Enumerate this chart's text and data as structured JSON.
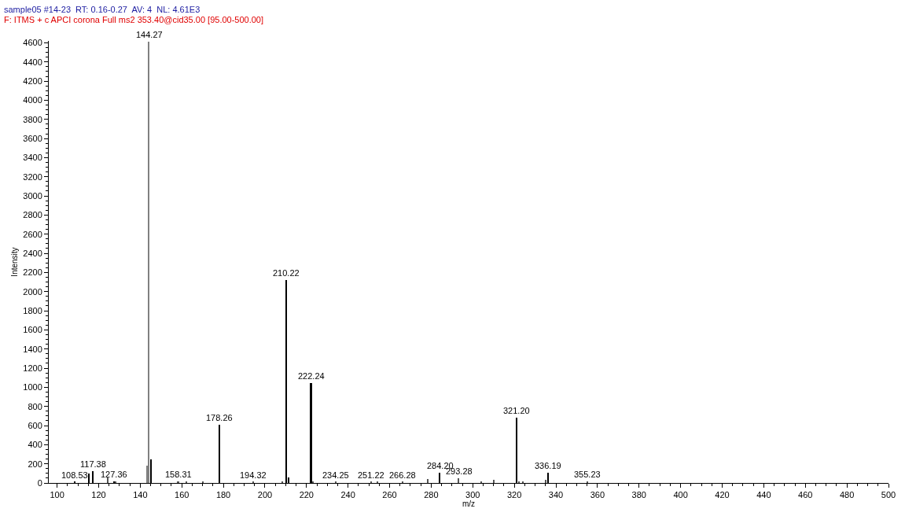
{
  "chart_data": {
    "type": "bar",
    "title": "sample05 #14-23  RT: 0.16-0.27  AV: 4  NL: 4.61E3",
    "subtitle": "F: ITMS + c APCI corona Full ms2 353.40@cid35.00 [95.00-500.00]",
    "xlabel": "m/z",
    "ylabel": "Intensity",
    "x": [
      108.53,
      115.4,
      117.38,
      124.3,
      127.36,
      128.3,
      143.4,
      144.27,
      145.3,
      158.31,
      162.3,
      170.3,
      178.26,
      194.32,
      208.3,
      210.22,
      211.3,
      222.24,
      223.3,
      234.25,
      251.22,
      254.3,
      266.28,
      278.3,
      284.2,
      293.28,
      304.3,
      310.3,
      321.2,
      322.3,
      324.3,
      335.3,
      336.19,
      355.23
    ],
    "values": [
      10,
      100,
      120,
      60,
      20,
      20,
      180,
      4610,
      250,
      20,
      10,
      10,
      610,
      10,
      20,
      2120,
      60,
      1040,
      20,
      10,
      10,
      10,
      10,
      40,
      110,
      50,
      10,
      30,
      680,
      20,
      10,
      30,
      110,
      20
    ],
    "colors": [
      "#000000",
      "#000000",
      "#000000",
      "#555555",
      "#000000",
      "#555555",
      "#808080",
      "#808080",
      "#000000",
      "#555555",
      "#555555",
      "#555555",
      "#000000",
      "#555555",
      "#555555",
      "#000000",
      "#000000",
      "#000000",
      "#555555",
      "#555555",
      "#555555",
      "#555555",
      "#555555",
      "#555555",
      "#000000",
      "#555555",
      "#555555",
      "#555555",
      "#000000",
      "#555555",
      "#555555",
      "#555555",
      "#000000",
      "#555555"
    ],
    "annotations": [
      {
        "text": "108.53",
        "x": 108.53,
        "y": 10
      },
      {
        "text": "117.38",
        "x": 117.38,
        "y": 120
      },
      {
        "text": "127.36",
        "x": 127.36,
        "y": 20
      },
      {
        "text": "144.27",
        "x": 144.27,
        "y": 4610
      },
      {
        "text": "158.31",
        "x": 158.31,
        "y": 20
      },
      {
        "text": "178.26",
        "x": 178.26,
        "y": 610
      },
      {
        "text": "194.32",
        "x": 194.32,
        "y": 10
      },
      {
        "text": "210.22",
        "x": 210.22,
        "y": 2120
      },
      {
        "text": "222.24",
        "x": 222.24,
        "y": 1040
      },
      {
        "text": "234.25",
        "x": 234.25,
        "y": 10
      },
      {
        "text": "251.22",
        "x": 251.22,
        "y": 10
      },
      {
        "text": "266.28",
        "x": 266.28,
        "y": 10
      },
      {
        "text": "284.20",
        "x": 284.2,
        "y": 110
      },
      {
        "text": "293.28",
        "x": 293.28,
        "y": 50
      },
      {
        "text": "321.20",
        "x": 321.2,
        "y": 680
      },
      {
        "text": "336.19",
        "x": 336.19,
        "y": 110
      },
      {
        "text": "355.23",
        "x": 355.23,
        "y": 20
      }
    ],
    "xlim": [
      96,
      500
    ],
    "xticks": [
      100,
      120,
      140,
      160,
      180,
      200,
      220,
      240,
      260,
      280,
      300,
      320,
      340,
      360,
      380,
      400,
      420,
      440,
      460,
      480,
      500
    ],
    "ylim": [
      0,
      4620
    ],
    "yticks": [
      0,
      200,
      400,
      600,
      800,
      1000,
      1200,
      1400,
      1600,
      1800,
      2000,
      2200,
      2400,
      2600,
      2800,
      3000,
      3200,
      3400,
      3600,
      3800,
      4000,
      4200,
      4400,
      4600
    ]
  }
}
